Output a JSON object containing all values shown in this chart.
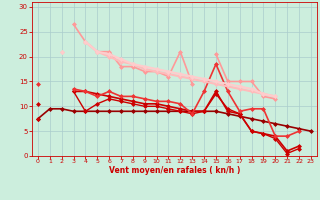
{
  "xlabel": "Vent moyen/en rafales ( kn/h )",
  "background_color": "#cceedd",
  "grid_color": "#aacccc",
  "x": [
    0,
    1,
    2,
    3,
    4,
    5,
    6,
    7,
    8,
    9,
    10,
    11,
    12,
    13,
    14,
    15,
    16,
    17,
    18,
    19,
    20,
    21,
    22,
    23
  ],
  "series": [
    {
      "y": [
        7.5,
        9.5,
        9.5,
        9.0,
        9.0,
        9.0,
        9.0,
        9.0,
        9.0,
        9.0,
        9.0,
        9.0,
        9.0,
        9.0,
        9.0,
        9.0,
        8.5,
        8.0,
        7.5,
        7.0,
        6.5,
        6.0,
        5.5,
        5.0
      ],
      "color": "#990000",
      "lw": 1.2,
      "marker": "D",
      "ms": 2.0
    },
    {
      "y": [
        10.5,
        null,
        null,
        13.0,
        13.0,
        12.5,
        12.0,
        11.5,
        11.0,
        10.5,
        10.5,
        10.0,
        9.5,
        9.0,
        9.0,
        13.0,
        9.0,
        8.5,
        5.0,
        4.5,
        4.0,
        1.0,
        2.0,
        null
      ],
      "color": "#cc0000",
      "lw": 1.2,
      "marker": "D",
      "ms": 2.0
    },
    {
      "y": [
        7.5,
        null,
        null,
        13.0,
        9.0,
        10.5,
        11.5,
        11.0,
        10.5,
        10.0,
        10.0,
        9.5,
        9.0,
        8.5,
        9.0,
        12.5,
        9.5,
        8.5,
        5.0,
        4.5,
        3.5,
        0.5,
        1.5,
        null
      ],
      "color": "#cc0000",
      "lw": 1.0,
      "marker": "D",
      "ms": 2.0
    },
    {
      "y": [
        14.5,
        null,
        null,
        13.5,
        13.0,
        12.0,
        13.0,
        12.0,
        12.0,
        11.5,
        11.0,
        11.0,
        10.5,
        8.5,
        13.0,
        18.5,
        13.0,
        9.0,
        9.5,
        9.5,
        4.0,
        4.0,
        5.0,
        null
      ],
      "color": "#ee3333",
      "lw": 1.2,
      "marker": "D",
      "ms": 2.0
    },
    {
      "y": [
        null,
        null,
        null,
        26.5,
        23.0,
        21.0,
        21.0,
        18.0,
        18.0,
        17.0,
        17.0,
        16.0,
        21.0,
        14.5,
        null,
        20.5,
        15.0,
        15.0,
        15.0,
        12.0,
        11.5,
        null,
        null,
        null
      ],
      "color": "#ff9999",
      "lw": 1.2,
      "marker": "D",
      "ms": 2.0
    },
    {
      "y": [
        null,
        null,
        21.0,
        null,
        23.0,
        21.0,
        20.0,
        19.0,
        18.5,
        17.5,
        17.0,
        16.5,
        16.0,
        15.5,
        15.0,
        14.5,
        14.0,
        13.5,
        13.0,
        12.5,
        12.0,
        null,
        null,
        null
      ],
      "color": "#ffbbbb",
      "lw": 1.5,
      "marker": "D",
      "ms": 2.0
    },
    {
      "y": [
        null,
        null,
        21.0,
        null,
        23.0,
        21.0,
        20.5,
        19.5,
        18.5,
        18.0,
        17.5,
        17.0,
        16.5,
        16.0,
        15.5,
        15.0,
        14.5,
        14.0,
        13.5,
        12.5,
        12.0,
        null,
        null,
        null
      ],
      "color": "#ffcccc",
      "lw": 1.5,
      "marker": "D",
      "ms": 2.0
    }
  ],
  "ylim": [
    0,
    31
  ],
  "xlim": [
    -0.5,
    23.5
  ],
  "yticks": [
    0,
    5,
    10,
    15,
    20,
    25,
    30
  ],
  "xticks": [
    0,
    1,
    2,
    3,
    4,
    5,
    6,
    7,
    8,
    9,
    10,
    11,
    12,
    13,
    14,
    15,
    16,
    17,
    18,
    19,
    20,
    21,
    22,
    23
  ],
  "tick_color": "#cc0000",
  "label_color": "#cc0000",
  "axis_color": "#cc0000",
  "figsize": [
    3.2,
    2.0
  ],
  "dpi": 100
}
